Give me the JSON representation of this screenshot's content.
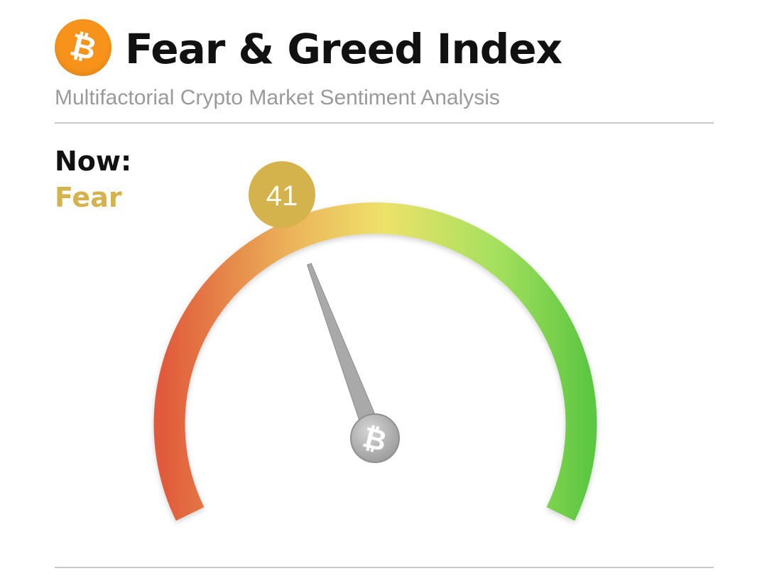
{
  "header": {
    "title": "Fear & Greed Index",
    "subtitle": "Multifactorial Crypto Market Sentiment Analysis",
    "logo_icon": "bitcoin-icon",
    "logo_color": "#f7931a"
  },
  "now": {
    "label": "Now:",
    "classification": "Fear",
    "classification_color": "#d4b24c"
  },
  "chart_data": {
    "type": "gauge",
    "value": 41,
    "min": 0,
    "max": 100,
    "value_badge_color": "#d4b24c",
    "gradient_colors": [
      "#e05a3a",
      "#ecb45a",
      "#ede26a",
      "#a6e05e",
      "#5cc742"
    ],
    "needle_color": "#a9a9a9",
    "hub_icon": "bitcoin-icon"
  }
}
